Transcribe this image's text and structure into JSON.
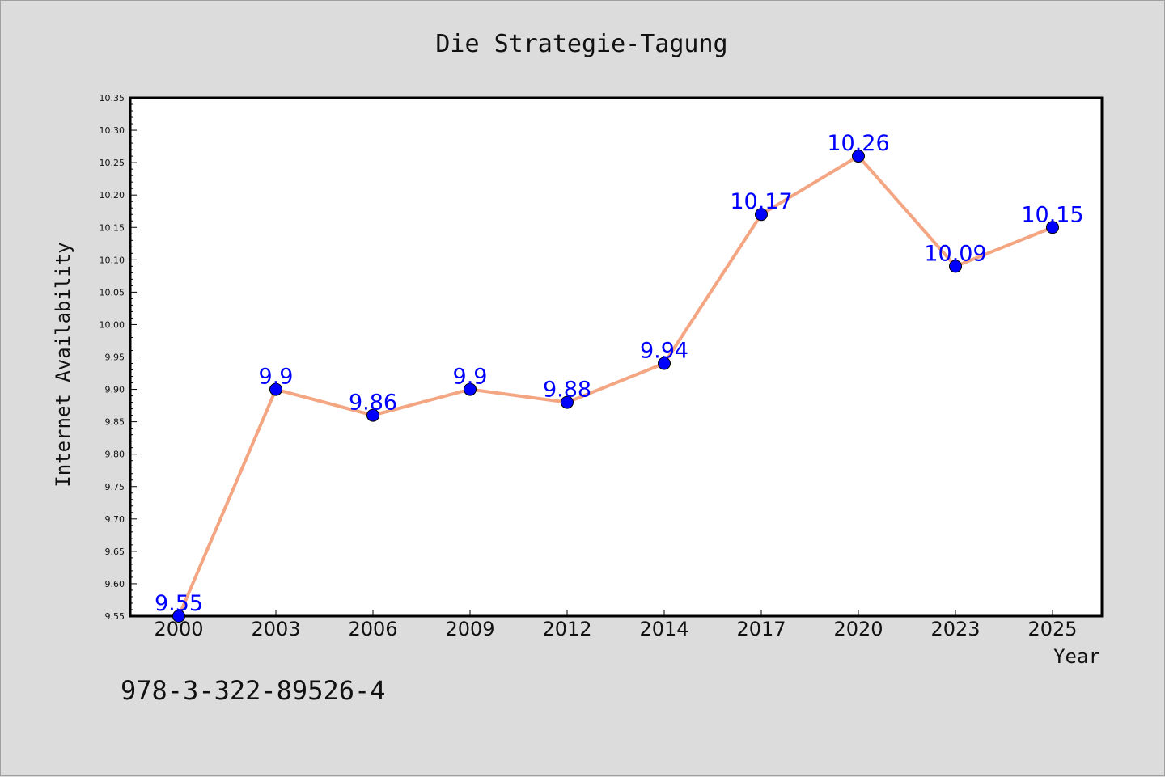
{
  "chart_data": {
    "type": "line",
    "title": "Die Strategie-Tagung",
    "xlabel": "Year",
    "ylabel": "Internet Availability",
    "categories": [
      "2000",
      "2003",
      "2006",
      "2009",
      "2012",
      "2014",
      "2017",
      "2020",
      "2023",
      "2025"
    ],
    "series": [
      {
        "values": [
          9.55,
          9.9,
          9.86,
          9.9,
          9.88,
          9.94,
          10.17,
          10.26,
          10.09,
          10.15
        ]
      }
    ],
    "data_labels": [
      "9.55",
      "9.9",
      "9.86",
      "9.9",
      "9.88",
      "9.94",
      "10.17",
      "10.26",
      "10.09",
      "10.15"
    ],
    "ylim": [
      9.55,
      10.35
    ],
    "yticks": [
      "9.55",
      "9.60",
      "9.65",
      "9.70",
      "9.75",
      "9.80",
      "9.85",
      "9.90",
      "9.95",
      "10.00",
      "10.05",
      "10.10",
      "10.15",
      "10.20",
      "10.25",
      "10.30",
      "10.35"
    ],
    "grid": false,
    "legend": "none",
    "colors": {
      "line": "#f4a582",
      "marker": "#0000ff",
      "label": "#0000ff",
      "background": "#dcdcdc",
      "plot_background": "#ffffff"
    }
  },
  "footer": {
    "isbn": "978-3-322-89526-4"
  }
}
